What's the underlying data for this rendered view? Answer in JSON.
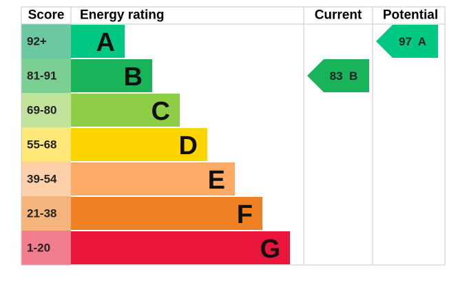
{
  "headers": {
    "score": "Score",
    "rating": "Energy rating",
    "current": "Current",
    "potential": "Potential"
  },
  "rows": [
    {
      "score": "92+",
      "band": "A",
      "color": "#00c781",
      "score_color": "#6cc8a0"
    },
    {
      "score": "81-91",
      "band": "B",
      "color": "#19b459",
      "score_color": "#7ccf93"
    },
    {
      "score": "69-80",
      "band": "C",
      "color": "#8dce46",
      "score_color": "#c2e39c"
    },
    {
      "score": "55-68",
      "band": "D",
      "color": "#ffd500",
      "score_color": "#ffe77a"
    },
    {
      "score": "39-54",
      "band": "E",
      "color": "#fcaa65",
      "score_color": "#fdd0aa"
    },
    {
      "score": "21-38",
      "band": "F",
      "color": "#ef8023",
      "score_color": "#f5b47c"
    },
    {
      "score": "1-20",
      "band": "G",
      "color": "#e9153b",
      "score_color": "#f17c8e"
    }
  ],
  "current": {
    "score": 83,
    "band": "B"
  },
  "potential": {
    "score": 97,
    "band": "A"
  }
}
